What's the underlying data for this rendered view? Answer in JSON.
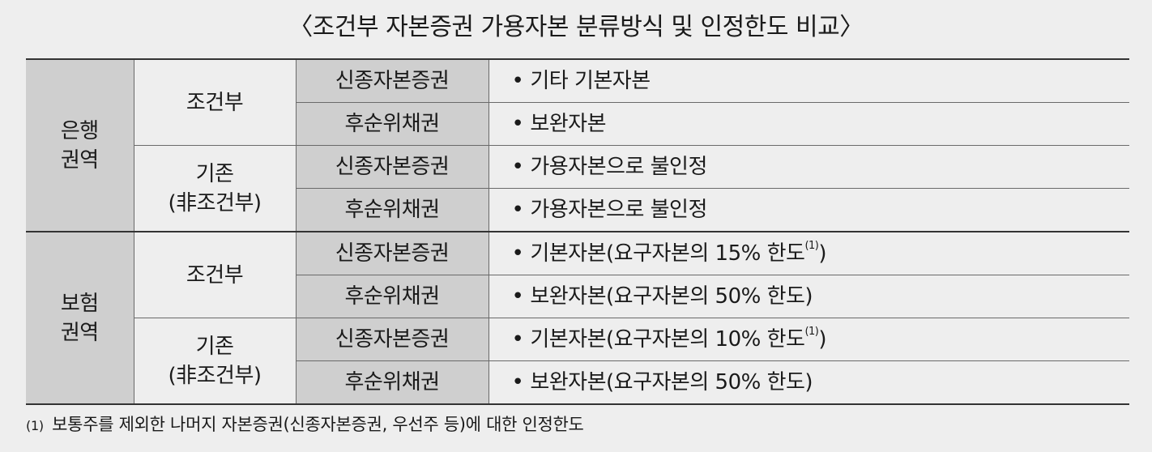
{
  "title": "〈조건부 자본증권 가용자본 분류방식 및 인정한도 비교〉",
  "bullet": "•",
  "groups": [
    {
      "region_line1": "은행",
      "region_line2": "권역",
      "categories": [
        {
          "name_line1": "조건부",
          "name_line2": "",
          "rows": [
            {
              "security": "신종자본증권",
              "treatment": "기타 기본자본",
              "footnote_ref": ""
            },
            {
              "security": "후순위채권",
              "treatment": "보완자본",
              "footnote_ref": ""
            }
          ]
        },
        {
          "name_line1": "기존",
          "name_line2": "(非조건부)",
          "rows": [
            {
              "security": "신종자본증권",
              "treatment": "가용자본으로 불인정",
              "footnote_ref": ""
            },
            {
              "security": "후순위채권",
              "treatment": "가용자본으로 불인정",
              "footnote_ref": ""
            }
          ]
        }
      ]
    },
    {
      "region_line1": "보험",
      "region_line2": "권역",
      "categories": [
        {
          "name_line1": "조건부",
          "name_line2": "",
          "rows": [
            {
              "security": "신종자본증권",
              "treatment": "기본자본(요구자본의 15% 한도",
              "footnote_ref": "(1)",
              "treatment_tail": ")"
            },
            {
              "security": "후순위채권",
              "treatment": "보완자본(요구자본의 50% 한도)",
              "footnote_ref": ""
            }
          ]
        },
        {
          "name_line1": "기존",
          "name_line2": "(非조건부)",
          "rows": [
            {
              "security": "신종자본증권",
              "treatment": "기본자본(요구자본의 10% 한도",
              "footnote_ref": "(1)",
              "treatment_tail": ")"
            },
            {
              "security": "후순위채권",
              "treatment": "보완자본(요구자본의 50% 한도)",
              "footnote_ref": ""
            }
          ]
        }
      ]
    }
  ],
  "footnote": {
    "mark": "(1)",
    "text": "보통주를 제외한 나머지 자본증권(신종자본증권, 우선주 등)에 대한 인정한도"
  }
}
